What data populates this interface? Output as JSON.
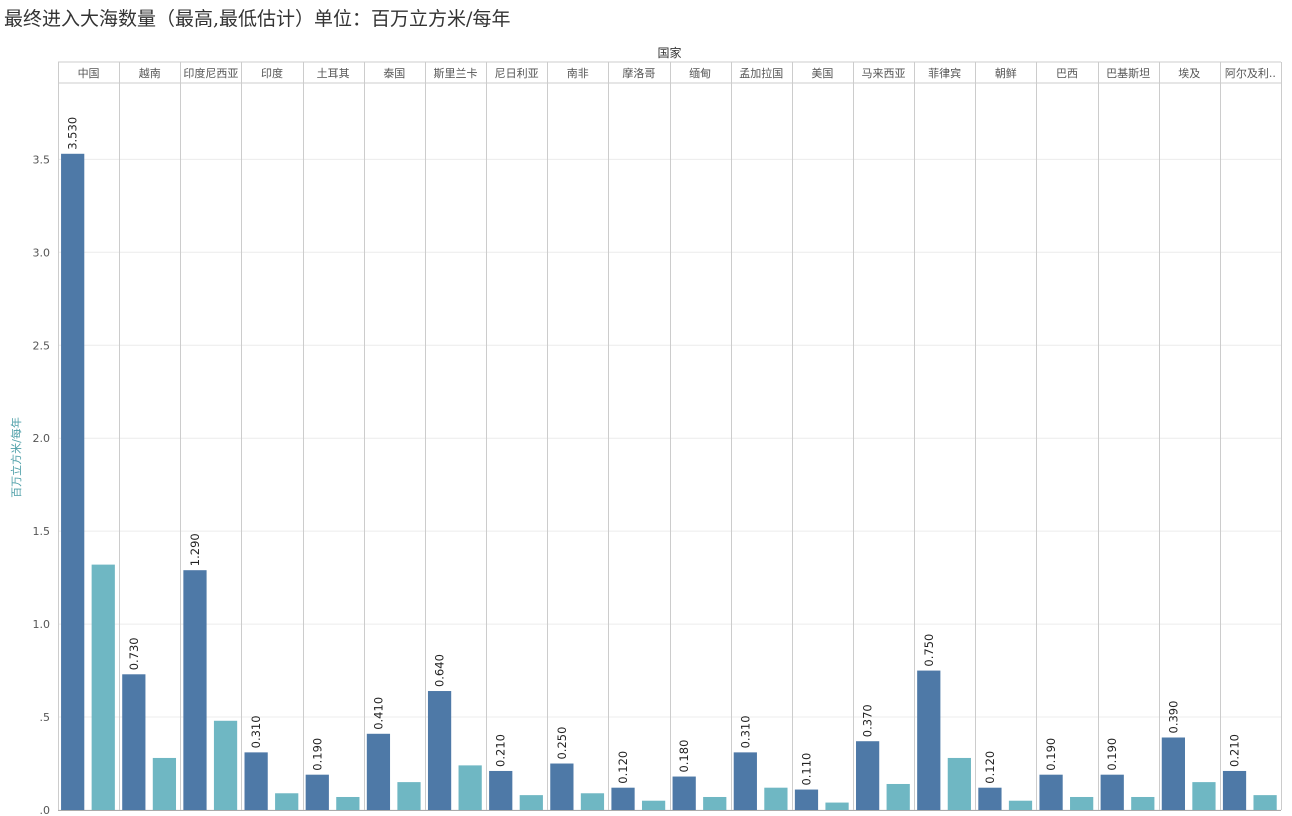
{
  "chart_data": {
    "type": "bar",
    "title": "最终进入大海数量（最高,最低估计）单位：百万立方米/每年",
    "column_header": "国家",
    "ylabel": "百万立方米/每年",
    "ylim": [
      0,
      3.9
    ],
    "yticks": [
      {
        "value": 0,
        "label": ".0"
      },
      {
        "value": 0.5,
        "label": ".5"
      },
      {
        "value": 1.0,
        "label": "1.0"
      },
      {
        "value": 1.5,
        "label": "1.5"
      },
      {
        "value": 2.0,
        "label": "2.0"
      },
      {
        "value": 2.5,
        "label": "2.5"
      },
      {
        "value": 3.0,
        "label": "3.0"
      },
      {
        "value": 3.5,
        "label": "3.5"
      }
    ],
    "grid": true,
    "categories": [
      "中国",
      "越南",
      "印度尼西亚",
      "印度",
      "土耳其",
      "泰国",
      "斯里兰卡",
      "尼日利亚",
      "南非",
      "摩洛哥",
      "缅甸",
      "孟加拉国",
      "美国",
      "马来西亚",
      "菲律宾",
      "朝鲜",
      "巴西",
      "巴基斯坦",
      "埃及",
      "阿尔及利.."
    ],
    "series": [
      {
        "color": "#4e79a7",
        "values": [
          3.53,
          0.73,
          1.29,
          0.31,
          0.19,
          0.41,
          0.64,
          0.21,
          0.25,
          0.12,
          0.18,
          0.31,
          0.11,
          0.37,
          0.75,
          0.12,
          0.19,
          0.19,
          0.39,
          0.21
        ],
        "labels": [
          "3.530",
          "0.730",
          "1.290",
          "0.310",
          "0.190",
          "0.410",
          "0.640",
          "0.210",
          "0.250",
          "0.120",
          "0.180",
          "0.310",
          "0.110",
          "0.370",
          "0.750",
          "0.120",
          "0.190",
          "0.190",
          "0.390",
          "0.210"
        ]
      },
      {
        "color": "#6fb7c3",
        "values": [
          1.32,
          0.28,
          0.48,
          0.09,
          0.07,
          0.15,
          0.24,
          0.08,
          0.09,
          0.05,
          0.07,
          0.12,
          0.04,
          0.14,
          0.28,
          0.05,
          0.07,
          0.07,
          0.15,
          0.08
        ]
      }
    ],
    "colors": {
      "ylabel": "#4e9fa8",
      "grid": "#ececec",
      "divider": "#cccccc",
      "axis": "#aaaaaa"
    }
  }
}
